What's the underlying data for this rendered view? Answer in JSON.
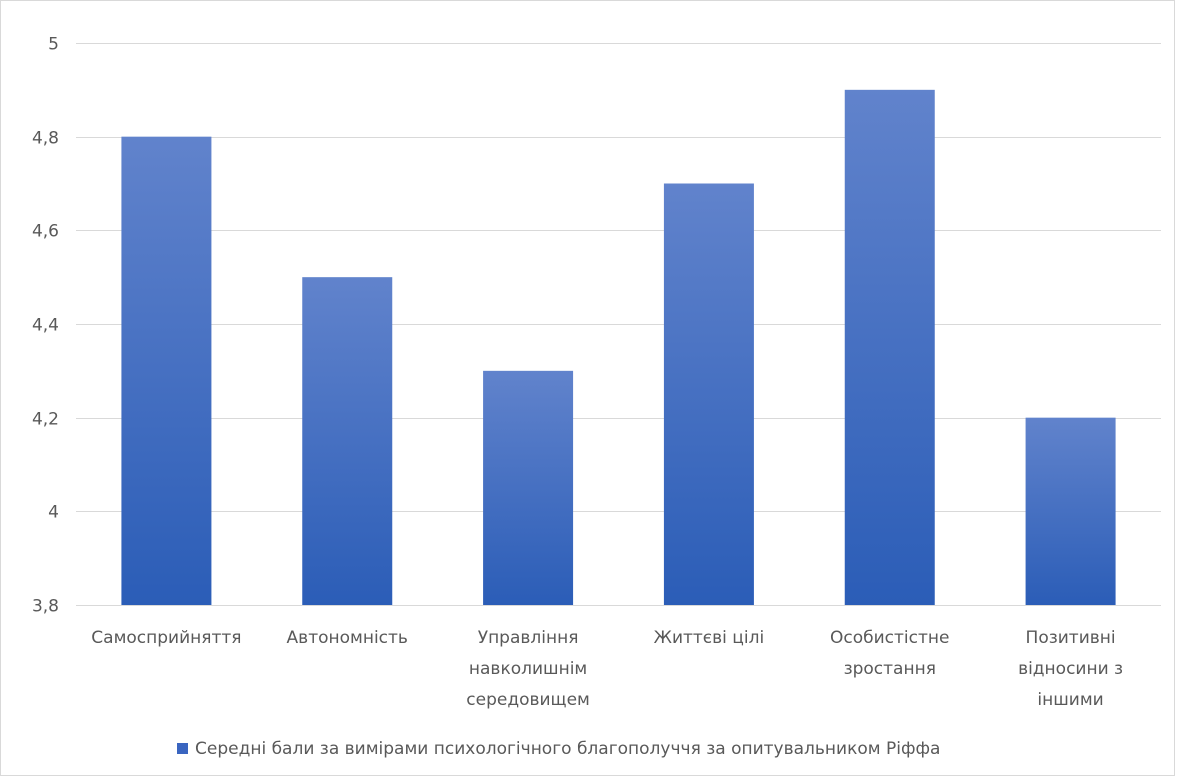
{
  "chart_data": {
    "type": "bar",
    "categories": [
      [
        "Самосприйняття"
      ],
      [
        "Автономність"
      ],
      [
        "Управління",
        "навколишнім",
        "середовищем"
      ],
      [
        "Життєві цілі"
      ],
      [
        "Особистістне",
        "зростання"
      ],
      [
        "Позитивні",
        "відносини з",
        "іншими"
      ]
    ],
    "series": [
      {
        "name": "Середні бали за вимірами психологічного благополуччя за опитувальником Ріффа",
        "values": [
          4.8,
          4.5,
          4.3,
          4.7,
          4.9,
          4.2
        ]
      }
    ],
    "ylim": [
      3.8,
      5
    ],
    "yticks": [
      "3,8",
      "4",
      "4,2",
      "4,4",
      "4,6",
      "4,8",
      "5"
    ],
    "ytick_values": [
      3.8,
      4.0,
      4.2,
      4.4,
      4.6,
      4.8,
      5.0
    ],
    "grid": true,
    "legend_position": "bottom",
    "colors": {
      "bar_top": "#6183cc",
      "bar_bottom": "#2b5db7",
      "legend_swatch": "#3a65c0"
    }
  }
}
